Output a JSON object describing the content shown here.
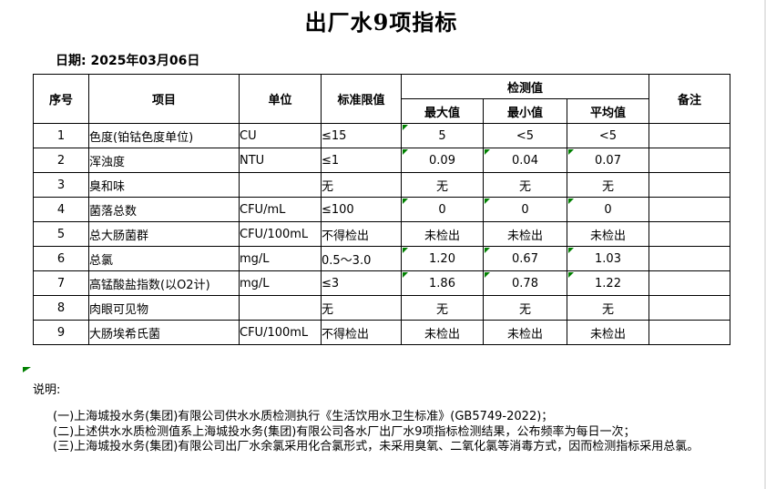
{
  "page": {
    "title": "出厂水9项指标",
    "date": "日期: 2025年03月06日"
  },
  "table": {
    "headers": {
      "no": "序号",
      "item": "项目",
      "unit": "单位",
      "limit": "标准限值",
      "detection": "检测值",
      "max": "最大值",
      "min": "最小值",
      "avg": "平均值",
      "remark": "备注"
    },
    "rows": [
      {
        "no": "1",
        "item": "色度(铂钴色度单位)",
        "unit": "CU",
        "limit": "≤15",
        "max": "5",
        "min": "<5",
        "avg": "<5",
        "remark": "",
        "flags": [
          "max"
        ]
      },
      {
        "no": "2",
        "item": "浑浊度",
        "unit": "NTU",
        "limit": "≤1",
        "max": "0.09",
        "min": "0.04",
        "avg": "0.07",
        "remark": "",
        "flags": [
          "max",
          "min",
          "avg"
        ]
      },
      {
        "no": "3",
        "item": "臭和味",
        "unit": "",
        "limit": "无",
        "max": "无",
        "min": "无",
        "avg": "无",
        "remark": "",
        "flags": []
      },
      {
        "no": "4",
        "item": "菌落总数",
        "unit": "CFU/mL",
        "limit": "≤100",
        "max": "0",
        "min": "0",
        "avg": "0",
        "remark": "",
        "flags": [
          "max",
          "min",
          "avg"
        ]
      },
      {
        "no": "5",
        "item": "总大肠菌群",
        "unit": "CFU/100mL",
        "limit": "不得检出",
        "max": "未检出",
        "min": "未检出",
        "avg": "未检出",
        "remark": "",
        "flags": []
      },
      {
        "no": "6",
        "item": "总氯",
        "unit": "mg/L",
        "limit": "0.5～3.0",
        "max": "1.20",
        "min": "0.67",
        "avg": "1.03",
        "remark": "",
        "flags": [
          "max",
          "min",
          "avg"
        ]
      },
      {
        "no": "7",
        "item": "高锰酸盐指数(以O2计)",
        "unit": "mg/L",
        "limit": "≤3",
        "max": "1.86",
        "min": "0.78",
        "avg": "1.22",
        "remark": "",
        "flags": [
          "max",
          "min",
          "avg"
        ]
      },
      {
        "no": "8",
        "item": "肉眼可见物",
        "unit": "",
        "limit": "无",
        "max": "无",
        "min": "无",
        "avg": "无",
        "remark": "",
        "flags": []
      },
      {
        "no": "9",
        "item": "大肠埃希氏菌",
        "unit": "CFU/100mL",
        "limit": "不得检出",
        "max": "未检出",
        "min": "未检出",
        "avg": "未检出",
        "remark": "",
        "flags": []
      }
    ]
  },
  "notes": {
    "label": "说明:",
    "items": [
      "(一)上海城投水务(集团)有限公司供水水质检测执行《生活饮用水卫生标准》(GB5749-2022)；",
      "(二)上述供水水质检测值系上海城投水务(集团)有限公司各水厂出厂水9项指标检测结果，公布频率为每日一次；",
      "(三)上海城投水务(集团)有限公司出厂水余氯采用化合氯形式，未采用臭氧、二氧化氯等消毒方式，因而检测指标采用总氯。"
    ]
  },
  "colors": {
    "flag_green": "#008000",
    "border": "#000000",
    "page_edge": "#e4e4e4"
  }
}
